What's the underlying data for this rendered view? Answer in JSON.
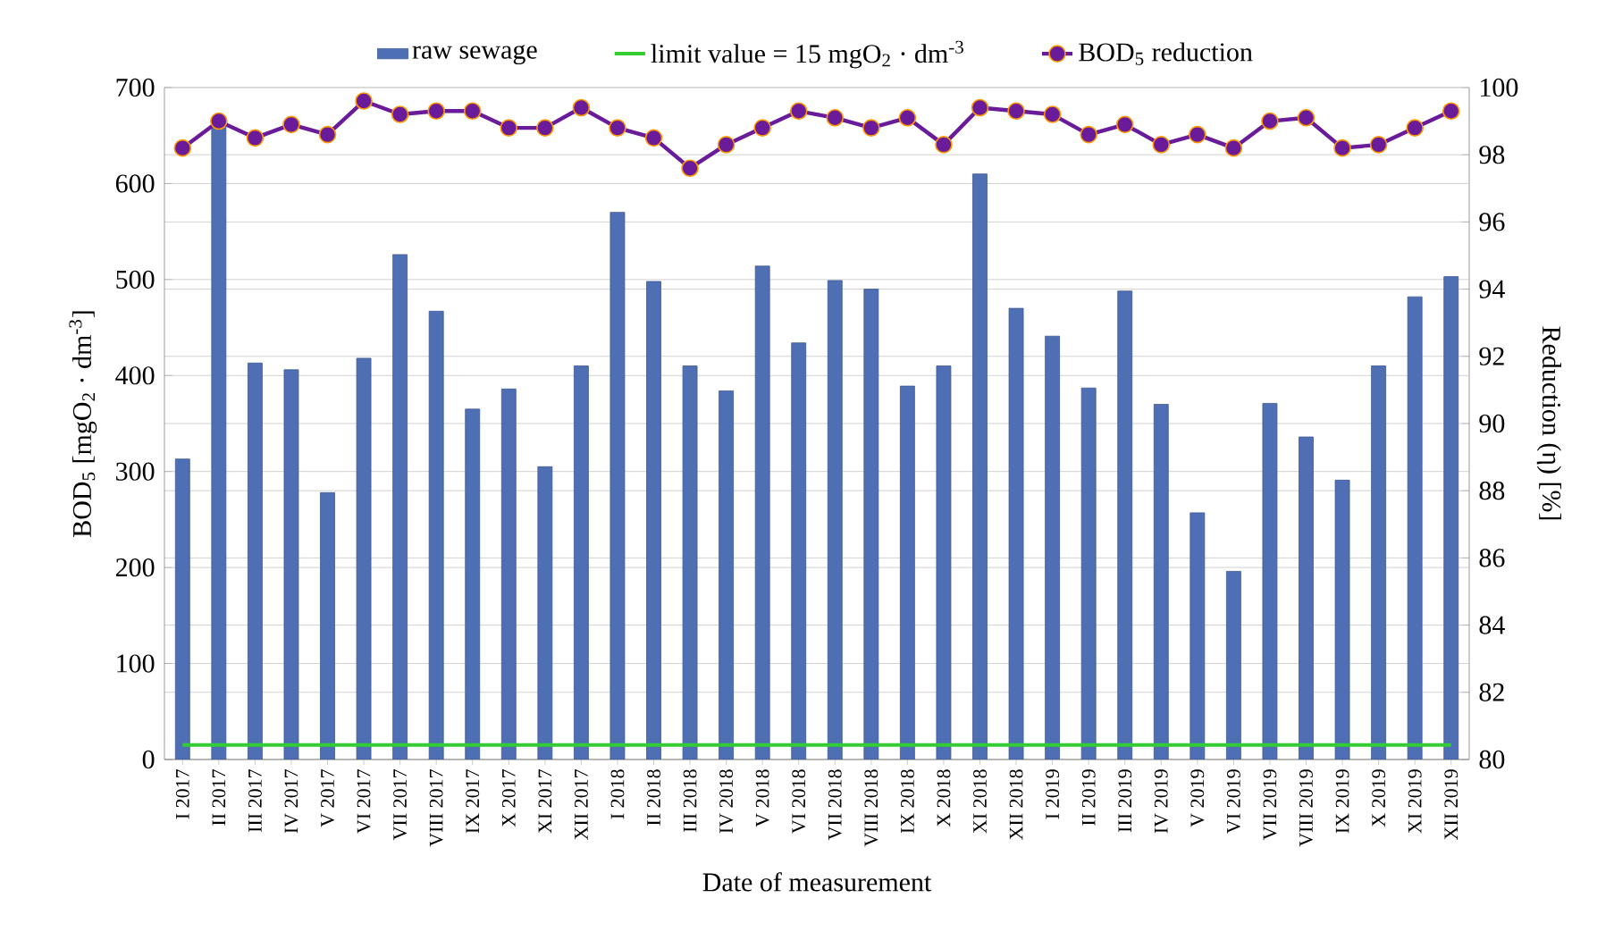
{
  "chart_data": {
    "type": "bar",
    "xlabel": "Date of measurement",
    "ylabel": "BOD$_{5}$ [mgO$_{2}$ · dm$^{-3}$]",
    "y2label": "Reduction (η) [%]",
    "categories": [
      "I 2017",
      "II 2017",
      "III 2017",
      "IV 2017",
      "V 2017",
      "VI 2017",
      "VII 2017",
      "VIII 2017",
      "IX 2017",
      "X 2017",
      "XI 2017",
      "XII 2017",
      "I 2018",
      "II 2018",
      "III 2018",
      "IV 2018",
      "V 2018",
      "VI 2018",
      "VII 2018",
      "VIII 2018",
      "IX 2018",
      "X 2018",
      "XI 2018",
      "XII 2018",
      "I 2019",
      "II 2019",
      "III 2019",
      "IV 2019",
      "V 2019",
      "VI 2019",
      "VII 2019",
      "VIII 2019",
      "IX 2019",
      "X 2019",
      "XI 2019",
      "XII 2019"
    ],
    "series": [
      {
        "name": "raw sewage",
        "color": "#4f6fb5",
        "values": [
          313,
          660,
          413,
          406,
          278,
          418,
          526,
          467,
          365,
          386,
          305,
          410,
          570,
          498,
          410,
          384,
          514,
          434,
          499,
          490,
          389,
          410,
          610,
          470,
          441,
          387,
          488,
          370,
          257,
          196,
          371,
          336,
          291,
          410,
          482,
          503
        ]
      },
      {
        "name": "BOD$_{5}$ reduction",
        "type": "line",
        "axis": "y2",
        "color": "#6a1b9a",
        "marker": "circle",
        "values": [
          98.2,
          99.0,
          98.5,
          98.9,
          98.6,
          99.6,
          99.2,
          99.3,
          99.3,
          98.8,
          98.8,
          99.4,
          98.8,
          98.5,
          97.6,
          98.3,
          98.8,
          99.3,
          99.1,
          98.8,
          99.1,
          98.3,
          99.4,
          99.3,
          99.2,
          98.6,
          98.9,
          98.3,
          98.6,
          98.2,
          99.0,
          99.1,
          98.2,
          98.3,
          98.8,
          99.3
        ]
      }
    ],
    "ref_lines": [
      {
        "axis": "y",
        "value": 15,
        "label": "limit value = 15 mgO$_{2}$ · dm$^{-3}$",
        "color": "#33cc33"
      }
    ],
    "ylim": [
      0,
      700
    ],
    "yticks": [
      0,
      100,
      200,
      300,
      400,
      500,
      600,
      700
    ],
    "y2lim": [
      80,
      100
    ],
    "y2ticks": [
      80,
      82,
      84,
      86,
      88,
      90,
      92,
      94,
      96,
      98,
      100
    ],
    "grid": "y",
    "legend": "top"
  }
}
